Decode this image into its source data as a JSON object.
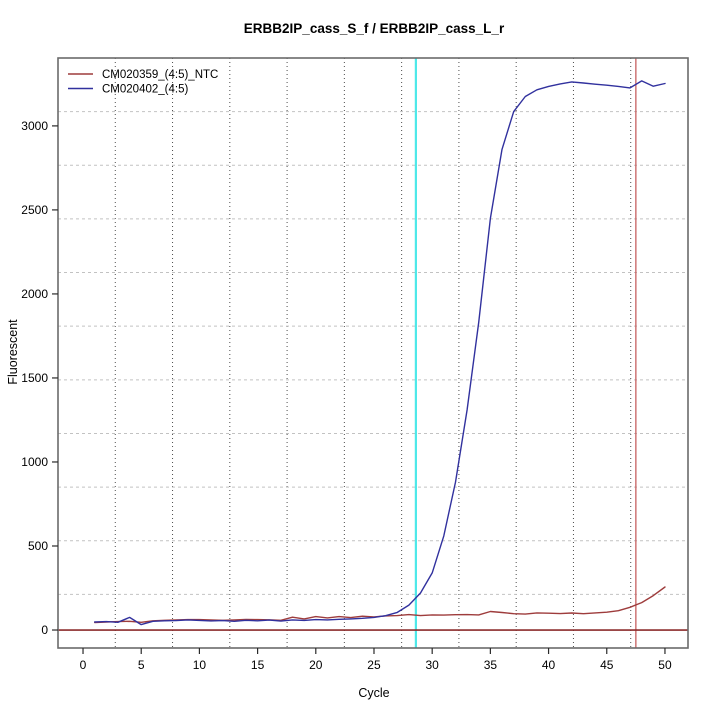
{
  "chart_data": {
    "type": "line",
    "title": "ERBB2IP_cass_S_f / ERBB2IP_cass_L_r",
    "xlabel": "Cycle",
    "ylabel": "Fluorescent",
    "x_ticks": [
      0,
      5,
      10,
      15,
      20,
      25,
      30,
      35,
      40,
      45,
      50
    ],
    "y_ticks": [
      0,
      500,
      1000,
      1500,
      2000,
      2500,
      3000
    ],
    "xlim": [
      -2.15,
      51.98
    ],
    "ylim": [
      -107,
      3404
    ],
    "grid": {
      "on": true,
      "nx": 11,
      "ny": 11
    },
    "legend_position": "top-left",
    "x_start": 1,
    "series": [
      {
        "name": "CM020359_(4:5)_NTC",
        "color": "#9e3c3c",
        "values": [
          45,
          48,
          50,
          52,
          46,
          55,
          58,
          60,
          62,
          62,
          60,
          58,
          60,
          63,
          62,
          61,
          58,
          76,
          66,
          80,
          72,
          80,
          74,
          82,
          78,
          84,
          86,
          92,
          86,
          90,
          89,
          91,
          92,
          90,
          110,
          104,
          97,
          95,
          102,
          100,
          98,
          101,
          97,
          102,
          106,
          115,
          135,
          163,
          205,
          256
        ]
      },
      {
        "name": "CM020402_(4:5)",
        "color": "#31319e",
        "values": [
          48,
          50,
          46,
          75,
          32,
          52,
          55,
          56,
          60,
          57,
          54,
          56,
          52,
          58,
          55,
          59,
          53,
          60,
          57,
          62,
          60,
          64,
          66,
          70,
          75,
          85,
          105,
          148,
          220,
          340,
          560,
          880,
          1310,
          1830,
          2450,
          2860,
          3085,
          3175,
          3215,
          3235,
          3250,
          3262,
          3255,
          3248,
          3242,
          3235,
          3226,
          3268,
          3236,
          3252
        ]
      }
    ],
    "annotations": [
      {
        "type": "vline",
        "x": 28.6,
        "color": "#4de9e9",
        "width": 2.2,
        "name": "threshold-cycle-line-cyan"
      },
      {
        "type": "vline",
        "x": 47.5,
        "color": "#c66060",
        "width": 1.3,
        "name": "threshold-cycle-line-red"
      },
      {
        "type": "hline",
        "y": 0,
        "color": "#8b2c2c",
        "width": 1.6,
        "name": "zero-baseline-line"
      }
    ]
  }
}
